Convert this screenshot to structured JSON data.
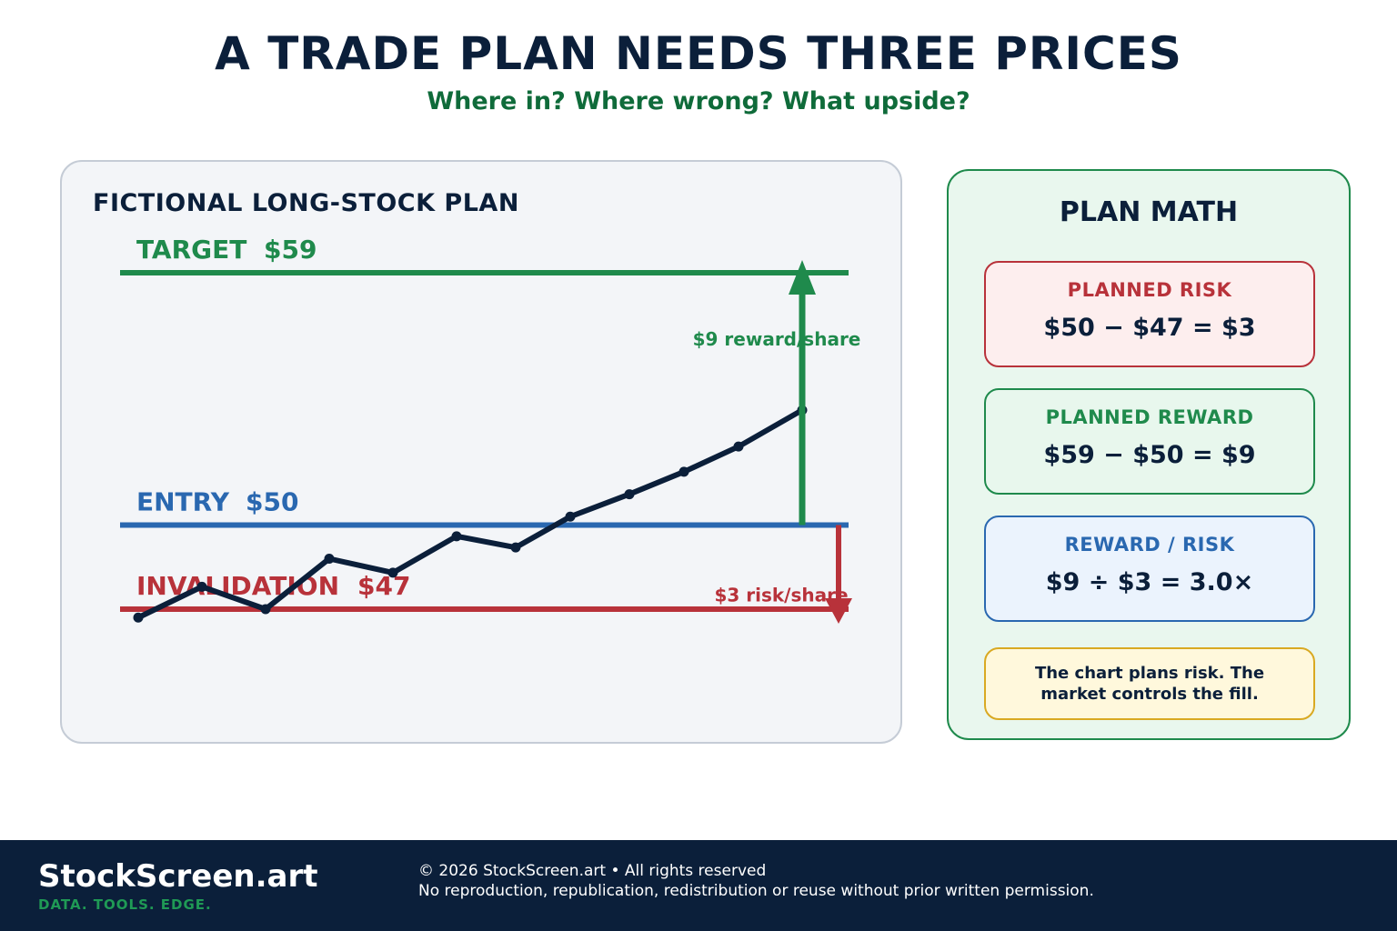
{
  "header": {
    "title": "A TRADE PLAN NEEDS THREE PRICES",
    "subtitle": "Where in? Where wrong? What upside?"
  },
  "chart_data": {
    "type": "line",
    "title": "FICTIONAL LONG-STOCK PLAN",
    "series": [
      {
        "values": [
          46.7,
          47.8,
          47.0,
          48.8,
          48.3,
          49.6,
          49.2,
          50.3,
          51.1,
          51.9,
          52.8,
          54.1
        ]
      }
    ],
    "ylim": [
      46,
      60
    ],
    "levels": {
      "target": {
        "label": "TARGET",
        "value_text": "$59",
        "value": 59,
        "color": "#1f8a4c"
      },
      "entry": {
        "label": "ENTRY",
        "value_text": "$50",
        "value": 50,
        "color": "#2a68b0"
      },
      "invalidation": {
        "label": "INVALIDATION",
        "value_text": "$47",
        "value": 47,
        "color": "#b8323a"
      }
    },
    "annotations": {
      "reward": "$9 reward/share",
      "risk": "$3 risk/share"
    },
    "line_color": "#0b1f3a",
    "grid": false
  },
  "plan_math": {
    "title": "PLAN MATH",
    "risk": {
      "label": "PLANNED RISK",
      "equation": "$50 − $47 = $3"
    },
    "reward": {
      "label": "PLANNED REWARD",
      "equation": "$59 − $50 = $9"
    },
    "ratio": {
      "label": "REWARD / RISK",
      "equation": "$9 ÷ $3 = 3.0×"
    },
    "note": "The chart plans risk. The market controls the fill."
  },
  "footer": {
    "brand": "StockScreen.art",
    "tagline": "DATA. TOOLS. EDGE.",
    "copyright": "© 2026 StockScreen.art • All rights reserved",
    "legal": "No reproduction, republication, redistribution or reuse without prior written permission."
  }
}
